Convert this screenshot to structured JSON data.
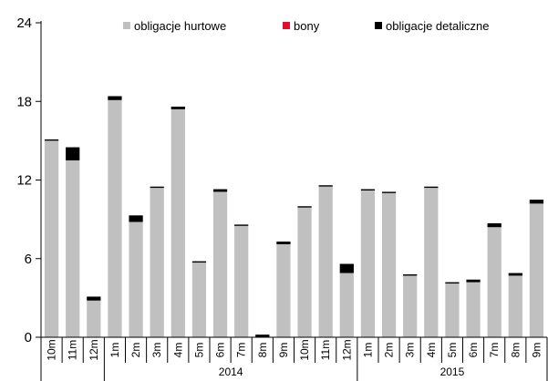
{
  "chart_data": {
    "type": "bar",
    "stacked": true,
    "categories": [
      "10m",
      "11m",
      "12m",
      "1m",
      "2m",
      "3m",
      "4m",
      "5m",
      "6m",
      "7m",
      "8m",
      "9m",
      "10m",
      "11m",
      "12m",
      "1m",
      "2m",
      "3m",
      "4m",
      "5m",
      "6m",
      "7m",
      "8m",
      "9m"
    ],
    "year_groups": [
      {
        "label": "",
        "start": 0,
        "end": 2
      },
      {
        "label": "2014",
        "start": 3,
        "end": 14
      },
      {
        "label": "2015",
        "start": 15,
        "end": 23
      }
    ],
    "series": [
      {
        "name": "obligacje hurtowe",
        "color": "#c0c0c0",
        "values": [
          15.0,
          13.5,
          2.8,
          18.1,
          8.8,
          11.4,
          17.4,
          5.7,
          11.1,
          8.5,
          0.0,
          7.1,
          9.9,
          11.5,
          4.9,
          11.2,
          11.0,
          4.7,
          11.4,
          4.1,
          4.2,
          8.4,
          4.7,
          10.2
        ]
      },
      {
        "name": "bony",
        "color": "#e0102a",
        "values": [
          0,
          0,
          0,
          0,
          0,
          0,
          0,
          0,
          0,
          0,
          0,
          0,
          0,
          0,
          0,
          0,
          0,
          0,
          0,
          0,
          0,
          0,
          0,
          0
        ]
      },
      {
        "name": "obligacje detaliczne",
        "color": "#000000",
        "values": [
          0.1,
          1.0,
          0.3,
          0.3,
          0.5,
          0.1,
          0.2,
          0.1,
          0.2,
          0.1,
          0.2,
          0.2,
          0.1,
          0.1,
          0.7,
          0.1,
          0.1,
          0.1,
          0.1,
          0.1,
          0.2,
          0.3,
          0.2,
          0.3
        ]
      }
    ],
    "ylim": [
      0,
      24
    ],
    "yticks": [
      "0",
      "6",
      "12",
      "18",
      "24"
    ],
    "legend_position": "top",
    "grid": false
  }
}
